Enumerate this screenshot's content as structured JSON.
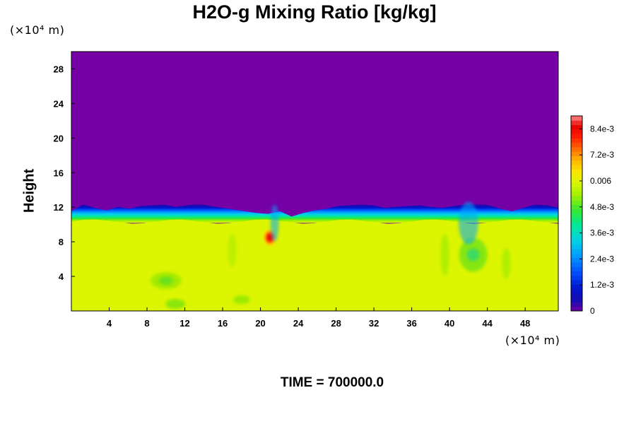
{
  "chart_data": {
    "type": "heatmap",
    "title": "H2O-g Mixing Ratio [kg/kg]",
    "ylabel": "Height",
    "xlabel": "",
    "y_unit": "(×10⁴ m)",
    "x_unit": "(×10⁴ m)",
    "xlim": [
      0,
      51.5
    ],
    "ylim": [
      0,
      30
    ],
    "x_ticks": [
      "4",
      "8",
      "12",
      "16",
      "20",
      "24",
      "28",
      "32",
      "36",
      "40",
      "44",
      "48"
    ],
    "y_ticks": [
      "4",
      "8",
      "12",
      "16",
      "20",
      "24",
      "28"
    ],
    "colorbar": {
      "range": [
        0,
        0.009
      ],
      "tick_values": [
        0,
        0.0012,
        0.0024,
        0.0036,
        0.0048,
        0.006,
        0.0072,
        0.0084
      ],
      "tick_labels": [
        "0",
        "1.2e-3",
        "2.4e-3",
        "3.6e-3",
        "4.8e-3",
        "0.006",
        "7.2e-3",
        "8.4e-3"
      ]
    },
    "field_summary": {
      "upper_layer_value": 0,
      "lower_layer_value": 0.0058,
      "layer_top_height": 10.5,
      "max_feature": {
        "x": 21,
        "y": 8.5,
        "value": 0.0084
      },
      "vortex": {
        "x": 42.5,
        "y": 6.5
      }
    },
    "colors": {
      "upper": "#7400a6",
      "lower": "#dcf500",
      "transition": [
        "#7400a6",
        "#1a0ab0",
        "#0016d0",
        "#0050ff",
        "#0098ff",
        "#00d2e8",
        "#00e89a",
        "#38e830",
        "#a8f000",
        "#dcf500"
      ],
      "hot": [
        "#ffe400",
        "#ff9a00",
        "#ff3000",
        "#e60000"
      ],
      "frame": "#000000"
    }
  },
  "footer": {
    "time_label": "TIME = 700000.0"
  }
}
